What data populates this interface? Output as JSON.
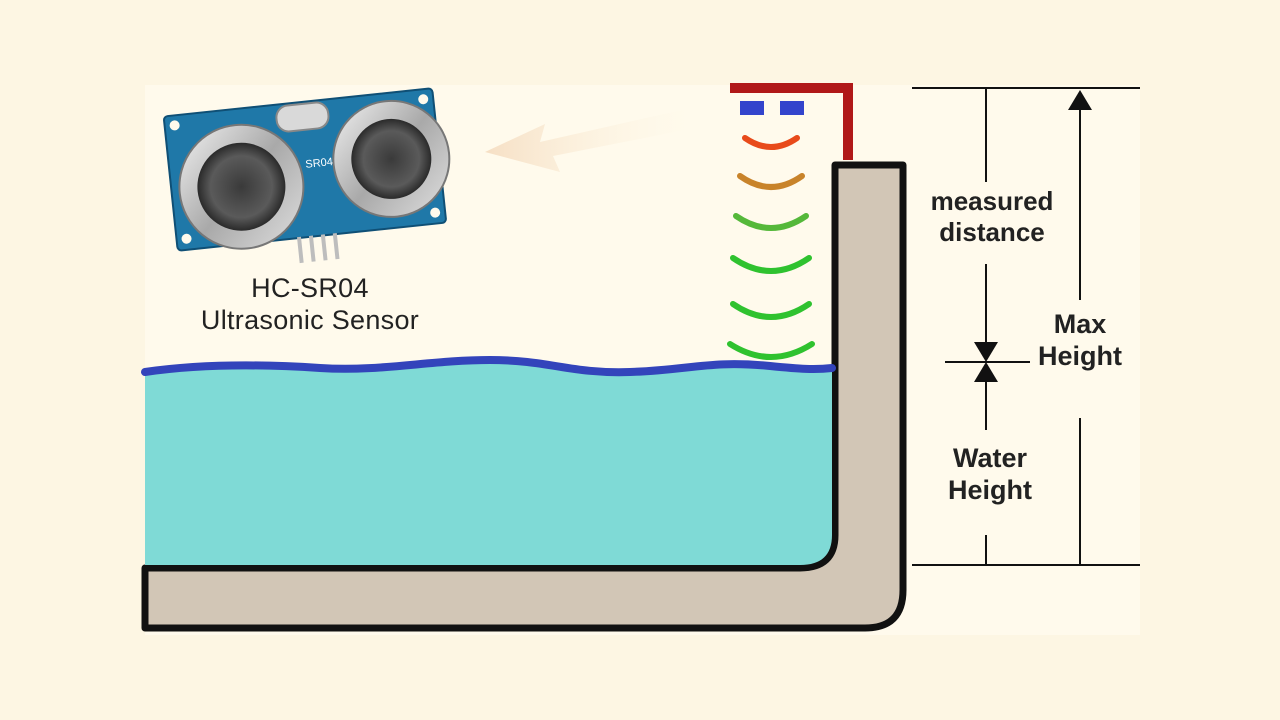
{
  "sensor": {
    "model": "HC-SR04",
    "type": "Ultrasonic Sensor",
    "board_print": "SR04"
  },
  "labels": {
    "measured_line1": "measured",
    "measured_line2": "distance",
    "max_line1": "Max",
    "max_line2": "Height",
    "water_line1": "Water",
    "water_line2": "Height"
  },
  "colors": {
    "background": "#fdf6e3",
    "water": "#7fdad6",
    "water_surface": "#3344bb",
    "tank_wall": "#d2c6b6",
    "mount_bracket": "#b01818",
    "transducer": "#3344cc",
    "wave_near": "#e84a1a",
    "wave_mid": "#c8832a",
    "wave_far": "#2fc22f",
    "sensor_board": "#1f78a8"
  },
  "icons": {
    "sensor_photo": "ultrasonic-sensor-module-icon",
    "direction_arrow": "pointer-arrow-icon"
  }
}
